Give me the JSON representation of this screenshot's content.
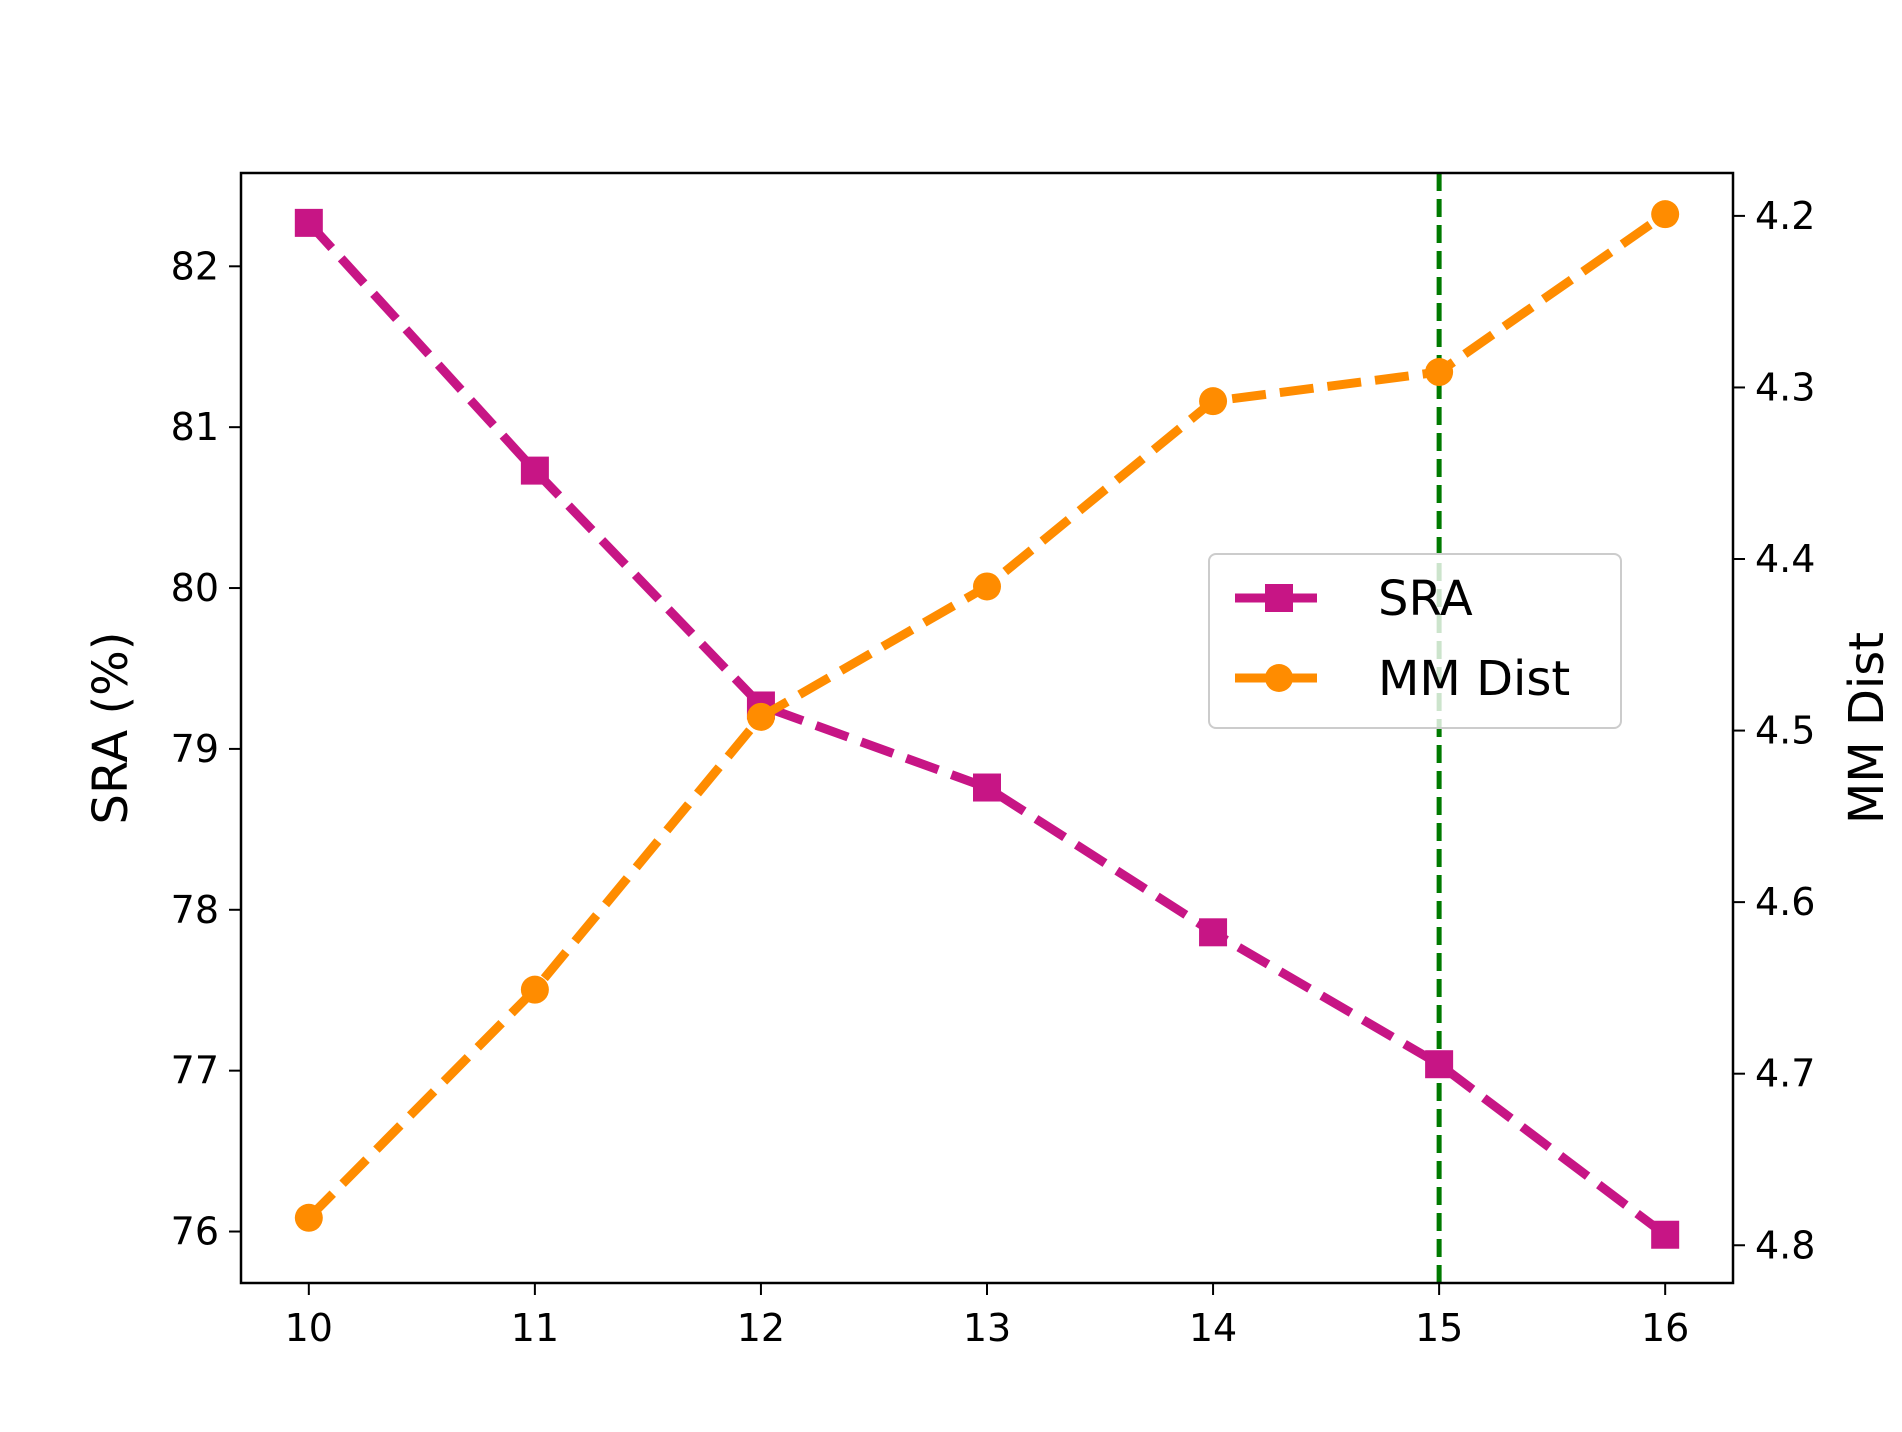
{
  "chart_data": {
    "type": "line",
    "x": [
      10,
      11,
      12,
      13,
      14,
      15,
      16
    ],
    "xlim": [
      9.7,
      16.3
    ],
    "xticks": [
      "10",
      "11",
      "12",
      "13",
      "14",
      "15",
      "16"
    ],
    "ylabel_left": "SRA (%)",
    "ylabel_right": "MM Dist",
    "ylim_left": [
      75.68,
      82.58
    ],
    "yticks_left": [
      "76",
      "77",
      "78",
      "79",
      "80",
      "81",
      "82"
    ],
    "ylim_right": [
      4.175,
      4.822
    ],
    "yticks_right": [
      "4.2",
      "4.3",
      "4.4",
      "4.5",
      "4.6",
      "4.7",
      "4.8"
    ],
    "right_axis_inverted": true,
    "vline": {
      "x": 15,
      "color": "#007a00",
      "style": "dashed"
    },
    "legend_position": "center-right",
    "series": [
      {
        "name": "SRA",
        "axis": "left",
        "color": "#c71585",
        "marker": "square",
        "linestyle": "dashed",
        "values": [
          82.27,
          80.73,
          79.27,
          78.76,
          77.86,
          77.04,
          75.98
        ]
      },
      {
        "name": "MM Dist",
        "axis": "right",
        "color": "#ff8c00",
        "marker": "circle",
        "linestyle": "dashed",
        "values": [
          4.784,
          4.651,
          4.492,
          4.416,
          4.308,
          4.291,
          4.199
        ]
      }
    ]
  }
}
